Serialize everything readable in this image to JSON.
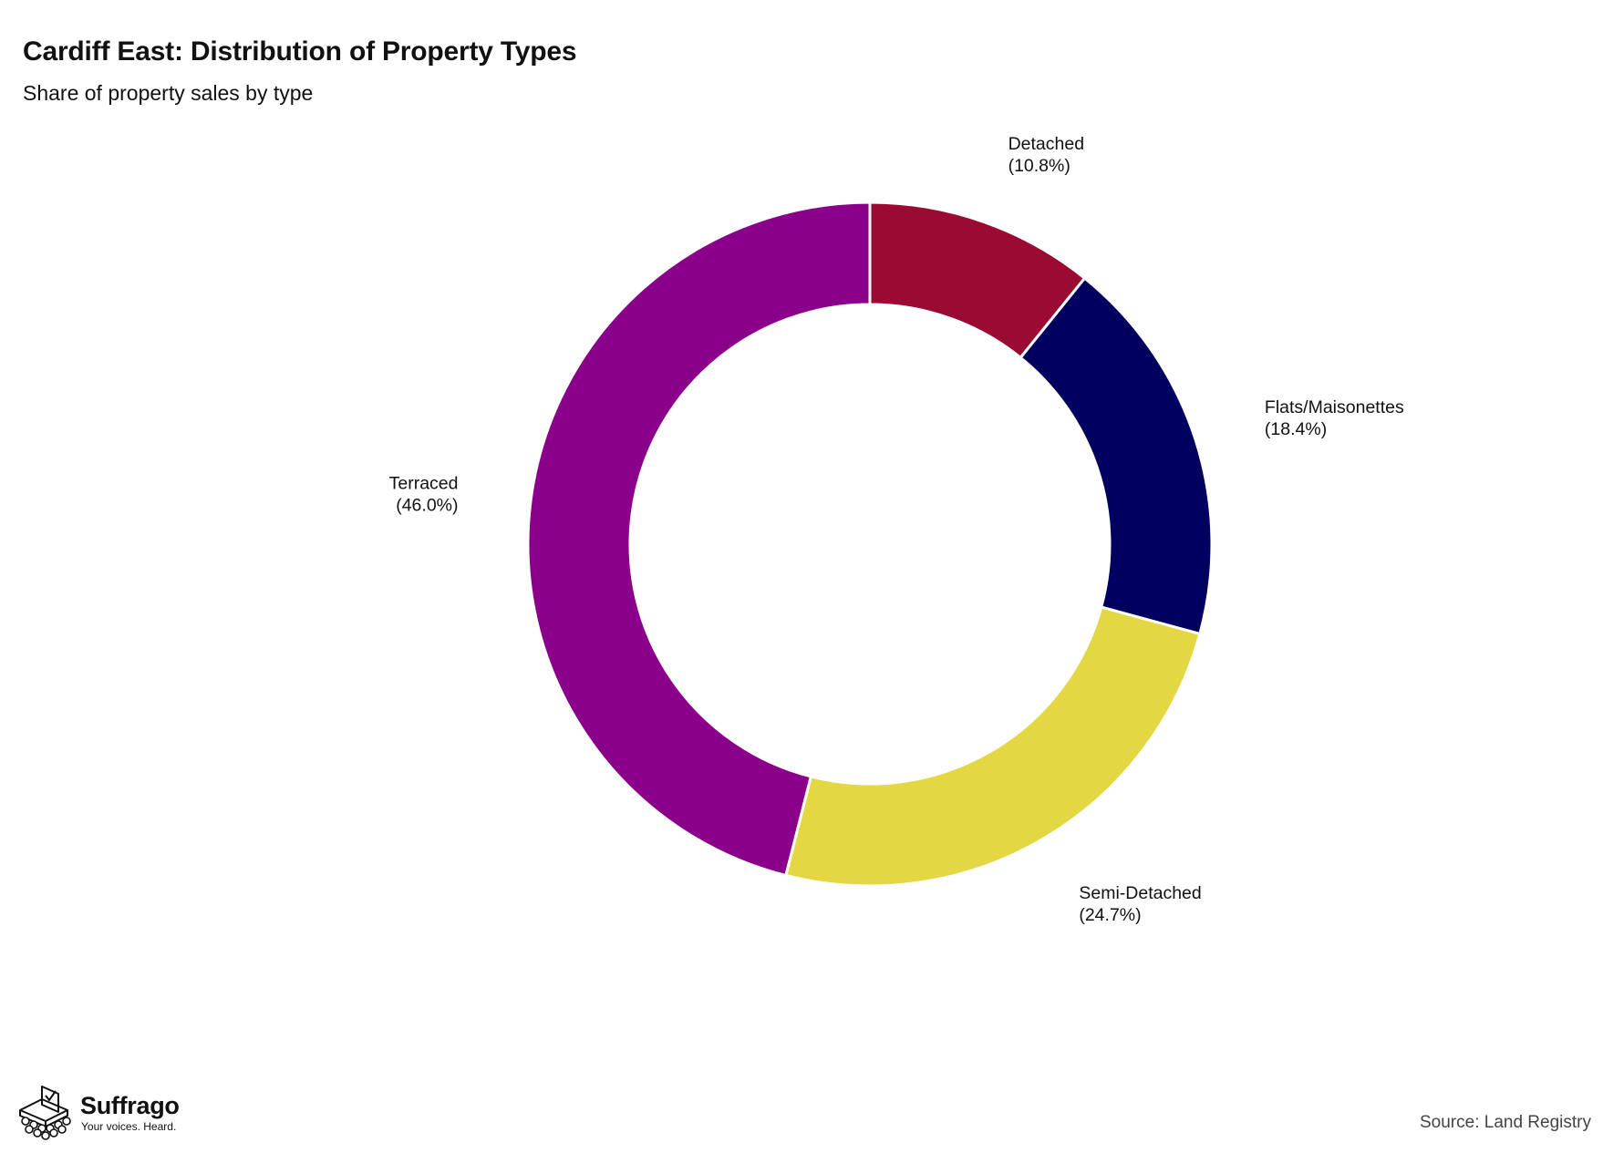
{
  "header": {
    "title": "Cardiff East: Distribution of Property Types",
    "subtitle": "Share of property sales by type"
  },
  "chart_data": {
    "type": "pie",
    "donut": true,
    "title": "Cardiff East: Distribution of Property Types",
    "subtitle": "Share of property sales by type",
    "slices": [
      {
        "name": "Detached",
        "value": 10.8,
        "label": "(10.8%)",
        "color": "#9b0a33"
      },
      {
        "name": "Flats/Maisonettes",
        "value": 18.4,
        "label": "(18.4%)",
        "color": "#00005f"
      },
      {
        "name": "Semi-Detached",
        "value": 24.7,
        "label": "(24.7%)",
        "color": "#e3d743"
      },
      {
        "name": "Terraced",
        "value": 46.0,
        "label": "(46.0%)",
        "color": "#8a008a"
      }
    ],
    "legend": "none",
    "slice_separator_color": "#ffffff"
  },
  "footer": {
    "brand_name": "Suffrago",
    "brand_tagline": "Your voices. Heard.",
    "source": "Source: Land Registry"
  }
}
